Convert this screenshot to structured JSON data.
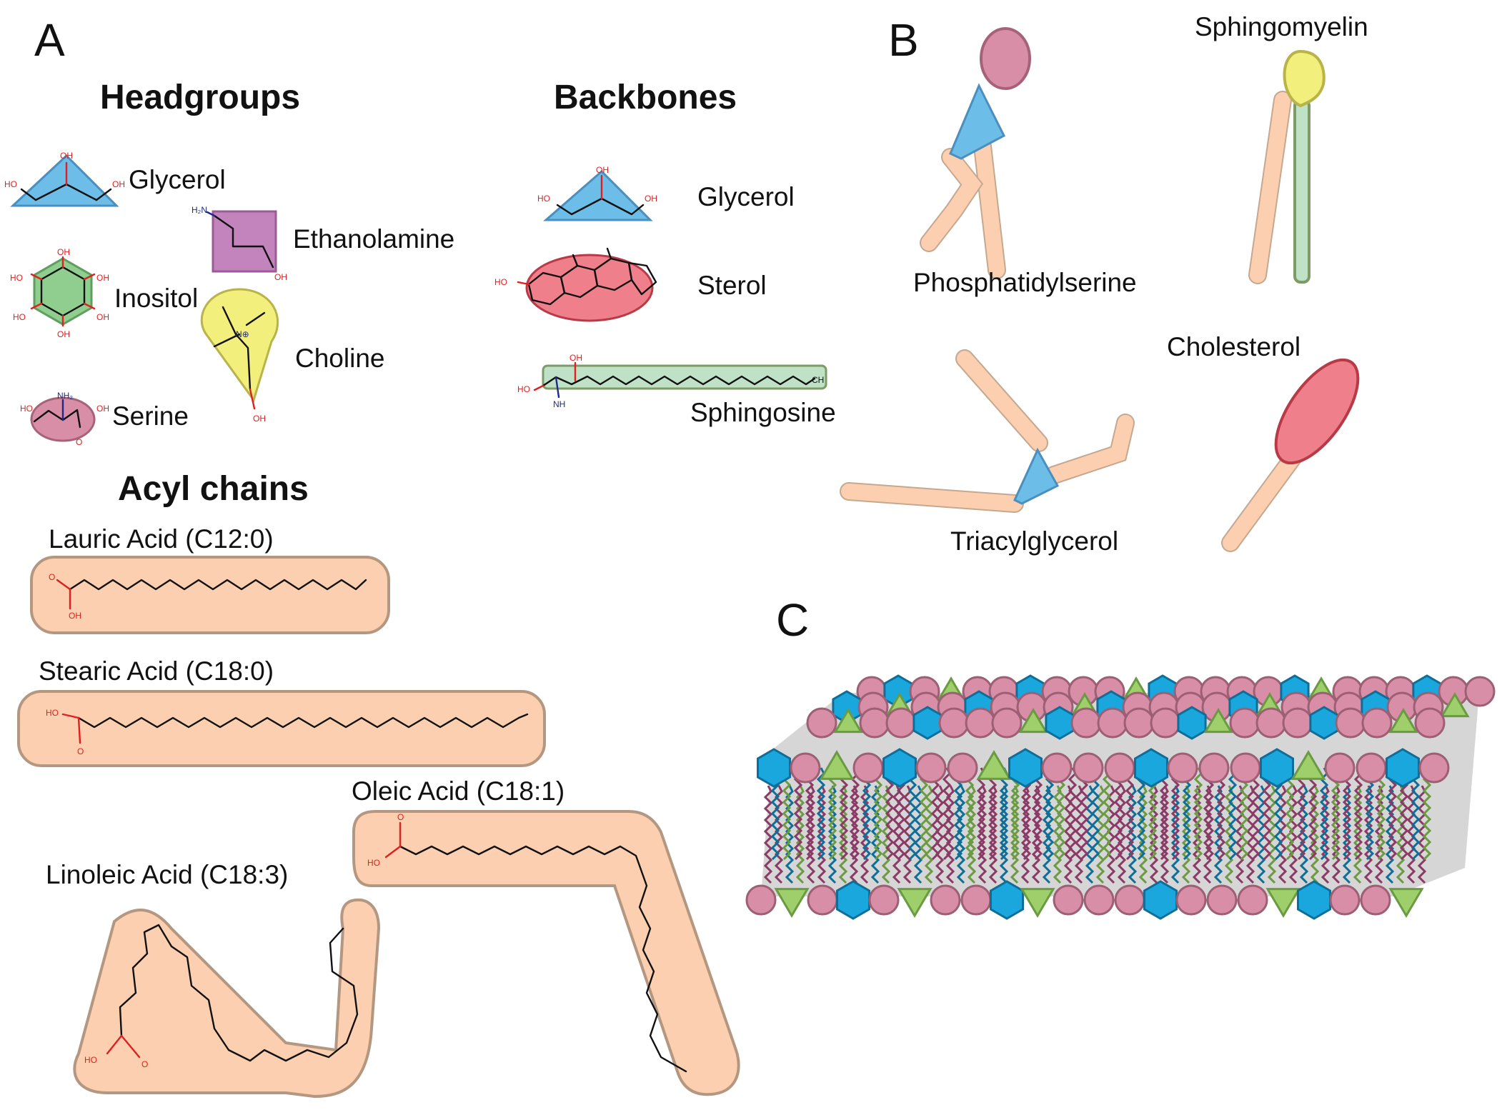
{
  "panels": {
    "a": "A",
    "b": "B",
    "c": "C"
  },
  "headgroups": {
    "title": "Headgroups",
    "glycerol": "Glycerol",
    "ethanolamine": "Ethanolamine",
    "inositol": "Inositol",
    "choline": "Choline",
    "serine": "Serine"
  },
  "backbones": {
    "title": "Backbones",
    "glycerol": "Glycerol",
    "sterol": "Sterol",
    "sphingosine": "Sphingosine"
  },
  "acyl": {
    "title": "Acyl chains",
    "lauric": "Lauric Acid (C12:0)",
    "stearic": "Stearic Acid (C18:0)",
    "oleic": "Oleic Acid (C18:1)",
    "linoleic": "Linoleic Acid (C18:3)"
  },
  "lipids": {
    "phosphatidylserine": "Phosphatidylserine",
    "sphingomyelin": "Sphingomyelin",
    "triacylglycerol": "Triacylglycerol",
    "cholesterol": "Cholesterol"
  },
  "chem_labels": {
    "oh": "OH",
    "ho": "HO",
    "h2n": "H₂N",
    "nh2": "NH₂",
    "nh": "NH",
    "o": "O",
    "n_plus": "N⊕",
    "ch3": "CH"
  },
  "colors": {
    "glycerol": "#6cbde8",
    "ethanolamine": "#c383bd",
    "inositol": "#8fce8f",
    "choline": "#f2ef7c",
    "serine": "#d98ea7",
    "sterol": "#ef7f8a",
    "sphingosine": "#bfe1c6",
    "acyl": "#fbcfb0",
    "membrane_blue": "#1aa7dd",
    "membrane_green": "#9fcf6a"
  }
}
